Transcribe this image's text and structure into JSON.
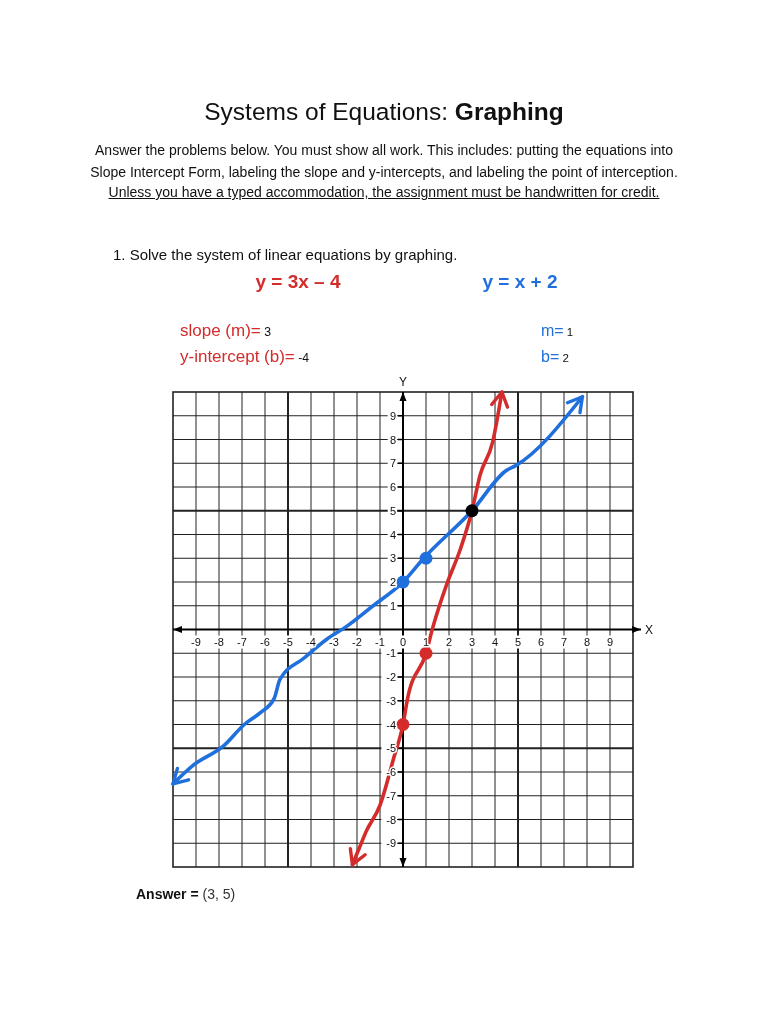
{
  "chart_data": {
    "type": "line",
    "title": "Systems of Equations: Graphing",
    "subtitle": "Answer the problems below. You must show all work. This includes: putting the equations into Slope Intercept Form, labeling the slope and y-intercepts, and labeling the point of interception.",
    "xlabel": "X",
    "ylabel": "Y",
    "annotations": [
      "Unless you have a typed accommodation, the assignment must be handwritten for credit.",
      "1. Solve the system of linear equations by graphing.",
      "slope (m)= 3",
      "m= 1",
      "y-intercept (b)= -4",
      "b= 2",
      "Answer = (3, 5)"
    ],
    "xlim": [
      -10,
      10
    ],
    "ylim": [
      -10,
      10
    ],
    "xticks": [
      -9,
      -8,
      -7,
      -6,
      -5,
      -4,
      -3,
      -2,
      -1,
      0,
      1,
      2,
      3,
      4,
      5,
      6,
      7,
      8,
      9
    ],
    "yticks": [
      -9,
      -8,
      -7,
      -6,
      -5,
      -4,
      -3,
      -2,
      -1,
      1,
      2,
      3,
      4,
      5,
      6,
      7,
      8,
      9
    ],
    "grid": true,
    "series": [
      {
        "name": "y = 3x – 4",
        "color": "#d42b2b",
        "x": [
          -2.2,
          -1.9,
          -1.6,
          -1.0,
          -0.4,
          0,
          0.2,
          1,
          1.3,
          1.9,
          2.5,
          3,
          3.35,
          3.9,
          4.3
        ],
        "values": [
          -9.9,
          -9.2,
          -8.5,
          -7.4,
          -5.4,
          -4,
          -2.9,
          -1,
          0.1,
          1.9,
          3.4,
          5,
          6.5,
          7.9,
          10
        ]
      },
      {
        "name": "y = x + 2",
        "color": "#1f6fdc",
        "x": [
          -10,
          -9.1,
          -7.8,
          -6.9,
          -6.2,
          -5.6,
          -5.35,
          -4.3,
          -3.3,
          -2.5,
          -1.3,
          0,
          0.9,
          3,
          4.5,
          4.9,
          7.8
        ],
        "values": [
          -6.5,
          -5.7,
          -4.9,
          -4.0,
          -3.5,
          -2.9,
          -2.1,
          -1.2,
          -0.4,
          0.1,
          1.0,
          2,
          3,
          5,
          6.7,
          6.9,
          9.8
        ]
      },
      {
        "type": "scatter",
        "marker": "circle",
        "color": "#d42b2b",
        "x": [
          0,
          1
        ],
        "values": [
          -4,
          -1
        ]
      },
      {
        "type": "scatter",
        "marker": "circle",
        "color": "#1f6fdc",
        "x": [
          0,
          1
        ],
        "values": [
          2,
          3
        ]
      },
      {
        "type": "scatter",
        "marker": "circle",
        "color": "#000000",
        "x": [
          3
        ],
        "values": [
          5
        ]
      }
    ]
  }
}
